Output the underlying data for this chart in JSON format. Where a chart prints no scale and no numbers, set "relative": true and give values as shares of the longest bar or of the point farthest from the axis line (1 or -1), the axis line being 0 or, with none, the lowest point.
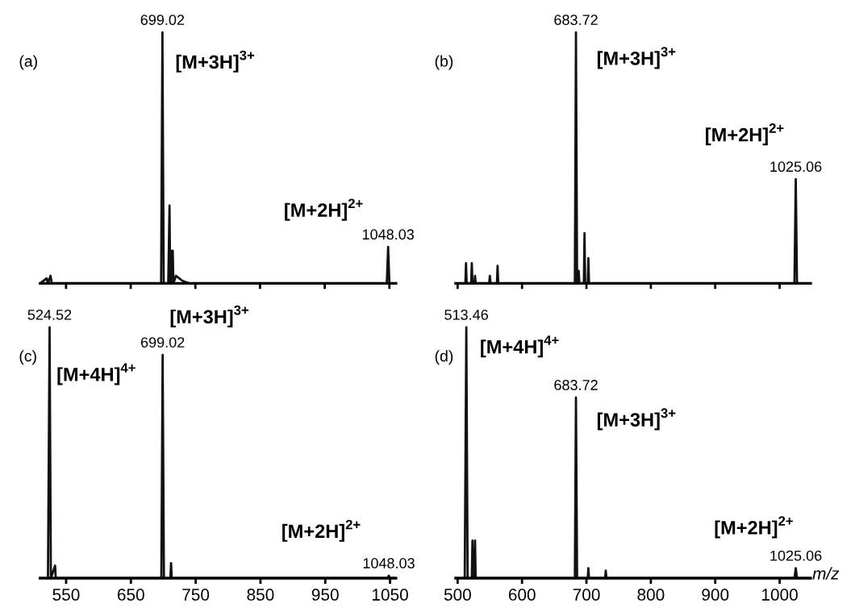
{
  "chart_data": [
    {
      "type": "line",
      "title": "(a)",
      "relative": true,
      "xlim": [
        510,
        1060
      ],
      "xticks": [
        550,
        650,
        750,
        850,
        950,
        1050
      ],
      "tick_labels": false,
      "color": "#111111",
      "x": [
        510,
        520,
        522,
        526,
        528,
        697,
        699.02,
        701,
        708,
        710,
        711,
        712,
        713,
        715,
        716,
        720,
        730,
        740,
        1046,
        1048.03,
        1050,
        1060
      ],
      "values": [
        0,
        0.02,
        0,
        0.03,
        0,
        0,
        1,
        0,
        0,
        0.31,
        0,
        0.13,
        0,
        0.13,
        0,
        0.03,
        0.01,
        0,
        0,
        0.145,
        0,
        0
      ],
      "annotations": [
        {
          "text": "699.02",
          "x": 699.02,
          "y": 1
        },
        {
          "text": "1048.03",
          "x": 1048.03,
          "y": 0.145
        },
        "[M+3H]$^{3+}$",
        "[M+2H]$^{2+}$"
      ]
    },
    {
      "type": "line",
      "title": "(b)",
      "relative": true,
      "xlim": [
        497,
        1048
      ],
      "xticks": [
        500,
        600,
        700,
        800,
        900,
        1000
      ],
      "tick_labels": false,
      "color": "#111111",
      "x": [
        497,
        512,
        513,
        514,
        521,
        522,
        523,
        526,
        527,
        528,
        549,
        550,
        551,
        561,
        562,
        563,
        682,
        683.72,
        685.5,
        688,
        689,
        696,
        697,
        698,
        702,
        703,
        704,
        1023,
        1025.06,
        1027,
        1048
      ],
      "values": [
        0,
        0,
        0.08,
        0,
        0,
        0.08,
        0,
        0,
        0.03,
        0,
        0,
        0.03,
        0,
        0,
        0.07,
        0,
        0,
        1,
        0,
        0.05,
        0,
        0,
        0.2,
        0,
        0,
        0.1,
        0,
        0,
        0.415,
        0,
        0
      ],
      "annotations": [
        {
          "text": "683.72",
          "x": 683.72,
          "y": 1
        },
        {
          "text": "1025.06",
          "x": 1025.06,
          "y": 0.415
        },
        "[M+3H]$^{3+}$",
        "[M+2H]$^{2+}$"
      ]
    },
    {
      "type": "line",
      "title": "(c)",
      "relative": true,
      "xlim": [
        510,
        1059
      ],
      "xticks": [
        550,
        650,
        750,
        850,
        950,
        1050
      ],
      "tick_labels": "x",
      "color": "#111111",
      "x": [
        510,
        522,
        524.52,
        526.5,
        533,
        534,
        697,
        699.02,
        701,
        711,
        712,
        713,
        1046,
        1048.03,
        1050,
        1059
      ],
      "values": [
        0,
        0,
        1,
        0,
        0.05,
        0,
        0,
        0.89,
        0,
        0,
        0.06,
        0,
        0,
        0.01,
        0,
        0
      ],
      "annotations": [
        {
          "text": "524.52",
          "x": 524.52,
          "y": 1
        },
        {
          "text": "699.02",
          "x": 699.02,
          "y": 0.89
        },
        {
          "text": "1048.03",
          "x": 1048.03,
          "y": 0.01
        },
        "[M+3H]$^{3+}$",
        "[M+4H]$^{4+}$",
        "[M+2H]$^{2+}$"
      ]
    },
    {
      "type": "line",
      "title": "(d)",
      "relative": true,
      "xlim": [
        497,
        1048
      ],
      "xticks": [
        500,
        600,
        700,
        800,
        900,
        1000
      ],
      "tick_labels": "x",
      "xlabel": "m/z",
      "color": "#111111",
      "x": [
        497,
        511,
        513.46,
        515.5,
        522,
        523,
        524,
        526,
        527,
        528,
        682,
        683.72,
        685.5,
        702,
        703,
        704,
        729,
        730,
        731,
        1023,
        1025.06,
        1027,
        1048
      ],
      "values": [
        0,
        0,
        1,
        0,
        0,
        0.15,
        0,
        0,
        0.15,
        0,
        0,
        0.72,
        0,
        0,
        0.04,
        0,
        0,
        0.03,
        0,
        0,
        0.04,
        0,
        0
      ],
      "annotations": [
        {
          "text": "513.46",
          "x": 513.46,
          "y": 1
        },
        {
          "text": "683.72",
          "x": 683.72,
          "y": 0.72
        },
        {
          "text": "1025.06",
          "x": 1025.06,
          "y": 0.04
        },
        "[M+4H]$^{4+}$",
        "[M+3H]$^{3+}$",
        "[M+2H]$^{2+}$"
      ]
    }
  ]
}
